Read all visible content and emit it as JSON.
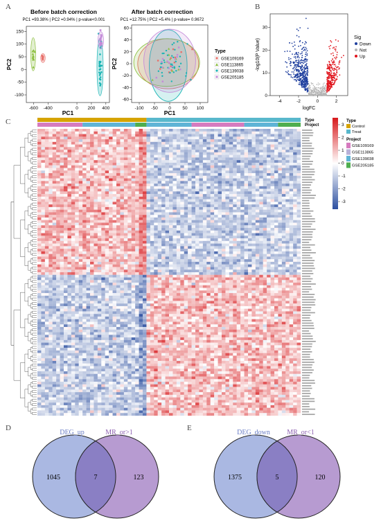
{
  "panels": {
    "a": "A",
    "b": "B",
    "c": "C",
    "d": "D",
    "e": "E"
  },
  "pca_before": {
    "title": "Before batch correction",
    "subtitle": "PC1 =93.38% | PC2 =0.94% | p-value<0.001",
    "xlabel": "PC1",
    "ylabel": "PC2",
    "xticks": [
      "-600",
      "-400",
      "0",
      "200",
      "400"
    ],
    "yticks": [
      "-100",
      "-50",
      "0",
      "50",
      "100",
      "150"
    ],
    "colors": {
      "GSE109169": "#e8706a",
      "GSE113865": "#8cbf3f",
      "GSE139038": "#19b4b4",
      "GSE205185": "#c48ad9"
    }
  },
  "pca_after": {
    "title": "After batch correction",
    "subtitle": "PC1 =12.75% | PC2 =5.4% | p-value= 0.9672",
    "xlabel": "PC1",
    "ylabel": "PC2",
    "xticks": [
      "-100",
      "-50",
      "0",
      "50",
      "100"
    ],
    "yticks": [
      "-60",
      "-40",
      "-20",
      "0",
      "20",
      "40",
      "60"
    ],
    "legend_title": "Type",
    "legend": [
      "GSE109169",
      "GSE113865",
      "GSE139038",
      "GSE205185"
    ]
  },
  "volcano": {
    "xlabel": "logFC",
    "ylabel": "-log10(P Value)",
    "xticks": [
      "-4",
      "-2",
      "0",
      "2"
    ],
    "yticks": [
      "0",
      "10",
      "20",
      "30"
    ],
    "legend_title": "Sig",
    "legend": [
      "Down",
      "Not",
      "Up"
    ],
    "colors": {
      "Down": "#1f3f9e",
      "Not": "#b5b5b5",
      "Up": "#e0141c"
    }
  },
  "heatmap": {
    "type_label": "Type",
    "project_label": "Project",
    "legend_type_title": "Type",
    "legend_type": [
      "Control",
      "Treat"
    ],
    "legend_project_title": "Project",
    "legend_project": [
      "GSE109169",
      "GSE113865",
      "GSE139038",
      "GSE205185"
    ],
    "colorbar_ticks": [
      "3",
      "2",
      "1",
      "0",
      "-1",
      "-2",
      "-3"
    ],
    "colors": {
      "Control": "#d6a300",
      "Treat": "#58b8cc",
      "GSE109169": "#d67bbf",
      "GSE113865": "#b8b1d8",
      "GSE139038": "#5fb4d6",
      "GSE205185": "#4fae4f",
      "high": "#d7191c",
      "mid": "#ffffff",
      "low": "#2c4fa0"
    }
  },
  "venn_d": {
    "left_label": "DEG_up",
    "right_label": "MR_or>1",
    "left_only": "1045",
    "overlap": "7",
    "right_only": "123"
  },
  "venn_e": {
    "left_label": "DEG_down",
    "right_label": "MR_or<1",
    "left_only": "1375",
    "overlap": "5",
    "right_only": "120"
  }
}
